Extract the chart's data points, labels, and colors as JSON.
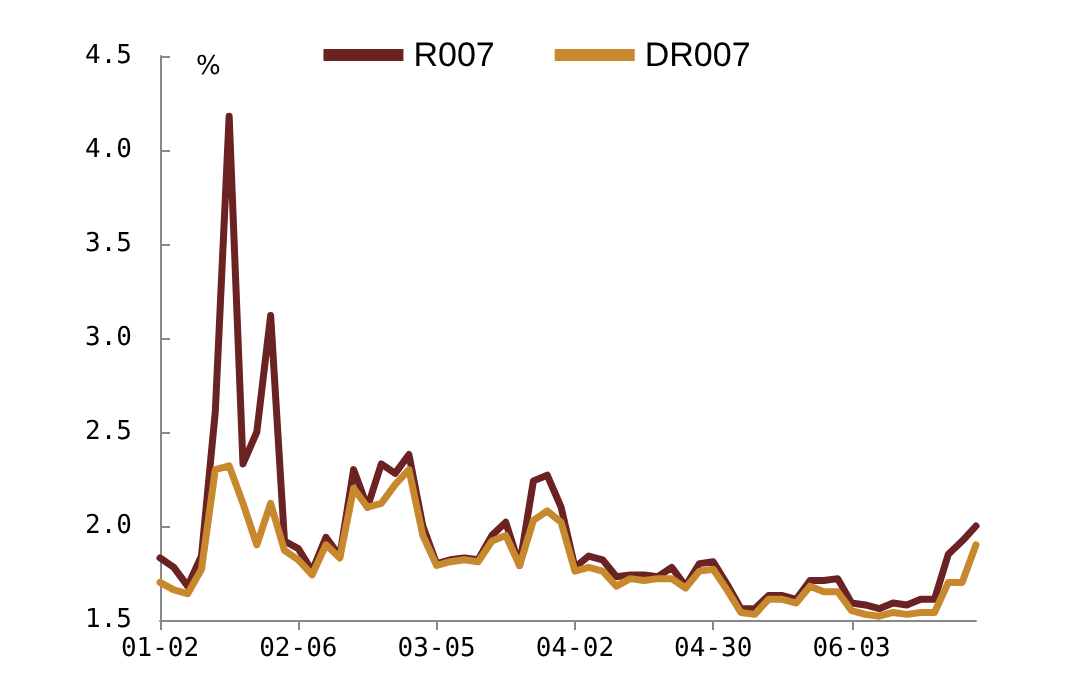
{
  "chart_data": {
    "type": "line",
    "ylabel": "%",
    "categories": [
      "01-02",
      null,
      null,
      null,
      null,
      null,
      null,
      null,
      null,
      null,
      "02-06",
      null,
      null,
      null,
      null,
      null,
      null,
      null,
      null,
      null,
      "03-05",
      null,
      null,
      null,
      null,
      null,
      null,
      null,
      null,
      null,
      "04-02",
      null,
      null,
      null,
      null,
      null,
      null,
      null,
      null,
      null,
      "04-30",
      null,
      null,
      null,
      null,
      null,
      null,
      null,
      null,
      null,
      "06-03",
      null,
      null,
      null,
      null,
      null,
      null,
      null,
      null,
      null
    ],
    "series": [
      {
        "name": "R007",
        "color": "#6b2222",
        "values": [
          1.83,
          1.78,
          1.68,
          1.84,
          2.61,
          4.18,
          2.33,
          2.5,
          3.12,
          1.92,
          1.88,
          1.76,
          1.94,
          1.84,
          2.3,
          2.1,
          2.33,
          2.28,
          2.38,
          2.0,
          1.8,
          1.82,
          1.83,
          1.82,
          1.95,
          2.02,
          1.79,
          2.24,
          2.27,
          2.1,
          1.78,
          1.84,
          1.82,
          1.73,
          1.74,
          1.74,
          1.73,
          1.78,
          1.68,
          1.8,
          1.81,
          1.69,
          1.56,
          1.56,
          1.63,
          1.63,
          1.61,
          1.71,
          1.71,
          1.72,
          1.59,
          1.58,
          1.56,
          1.59,
          1.58,
          1.61,
          1.61,
          1.85,
          1.92,
          2.0
        ]
      },
      {
        "name": "DR007",
        "color": "#c8882e",
        "values": [
          1.7,
          1.66,
          1.64,
          1.77,
          2.3,
          2.32,
          2.12,
          1.9,
          2.12,
          1.87,
          1.82,
          1.74,
          1.9,
          1.83,
          2.2,
          2.1,
          2.12,
          2.22,
          2.3,
          1.95,
          1.79,
          1.81,
          1.82,
          1.81,
          1.92,
          1.95,
          1.79,
          2.03,
          2.08,
          2.02,
          1.76,
          1.78,
          1.76,
          1.68,
          1.72,
          1.71,
          1.72,
          1.72,
          1.67,
          1.76,
          1.77,
          1.66,
          1.54,
          1.53,
          1.61,
          1.61,
          1.59,
          1.68,
          1.65,
          1.65,
          1.55,
          1.53,
          1.52,
          1.54,
          1.53,
          1.54,
          1.54,
          1.7,
          1.7,
          1.9
        ]
      }
    ],
    "ylim": [
      1.5,
      4.5
    ],
    "yticks": [
      {
        "value": 1.5,
        "label": "1.5"
      },
      {
        "value": 2,
        "label": "2.0"
      },
      {
        "value": 2.5,
        "label": "2.5"
      },
      {
        "value": 3,
        "label": "3.0"
      },
      {
        "value": 3.5,
        "label": "3.5"
      },
      {
        "value": 4,
        "label": "4.0"
      },
      {
        "value": 4.5,
        "label": "4.5"
      }
    ],
    "legend": "top",
    "grid": false,
    "marker": "none",
    "line_style": "solid"
  }
}
